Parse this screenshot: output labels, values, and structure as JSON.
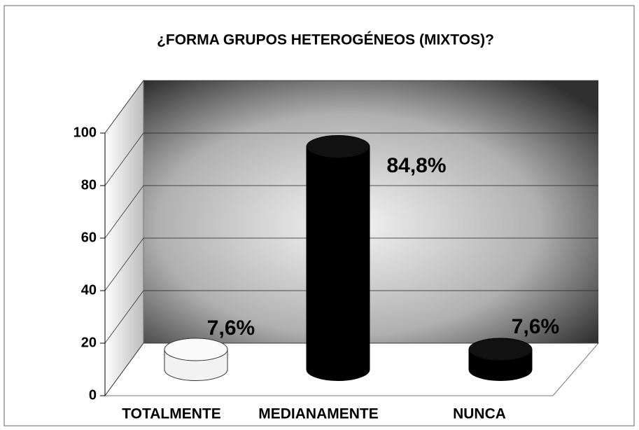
{
  "chart_data": {
    "type": "bar3d",
    "title": "¿FORMA GRUPOS HETEROGÉNEOS (MIXTOS)?",
    "categories": [
      "TOTALMENTE",
      "MEDIANAMENTE",
      "NUNCA"
    ],
    "values": [
      7.6,
      84.8,
      7.6
    ],
    "value_labels": [
      "7,6%",
      "84,8%",
      "7,6%"
    ],
    "colors": [
      "#f2f2f2",
      "#000000",
      "#000000"
    ],
    "ylim": [
      0,
      100
    ],
    "yticks": [
      0,
      20,
      40,
      60,
      80,
      100
    ],
    "grid": true
  }
}
